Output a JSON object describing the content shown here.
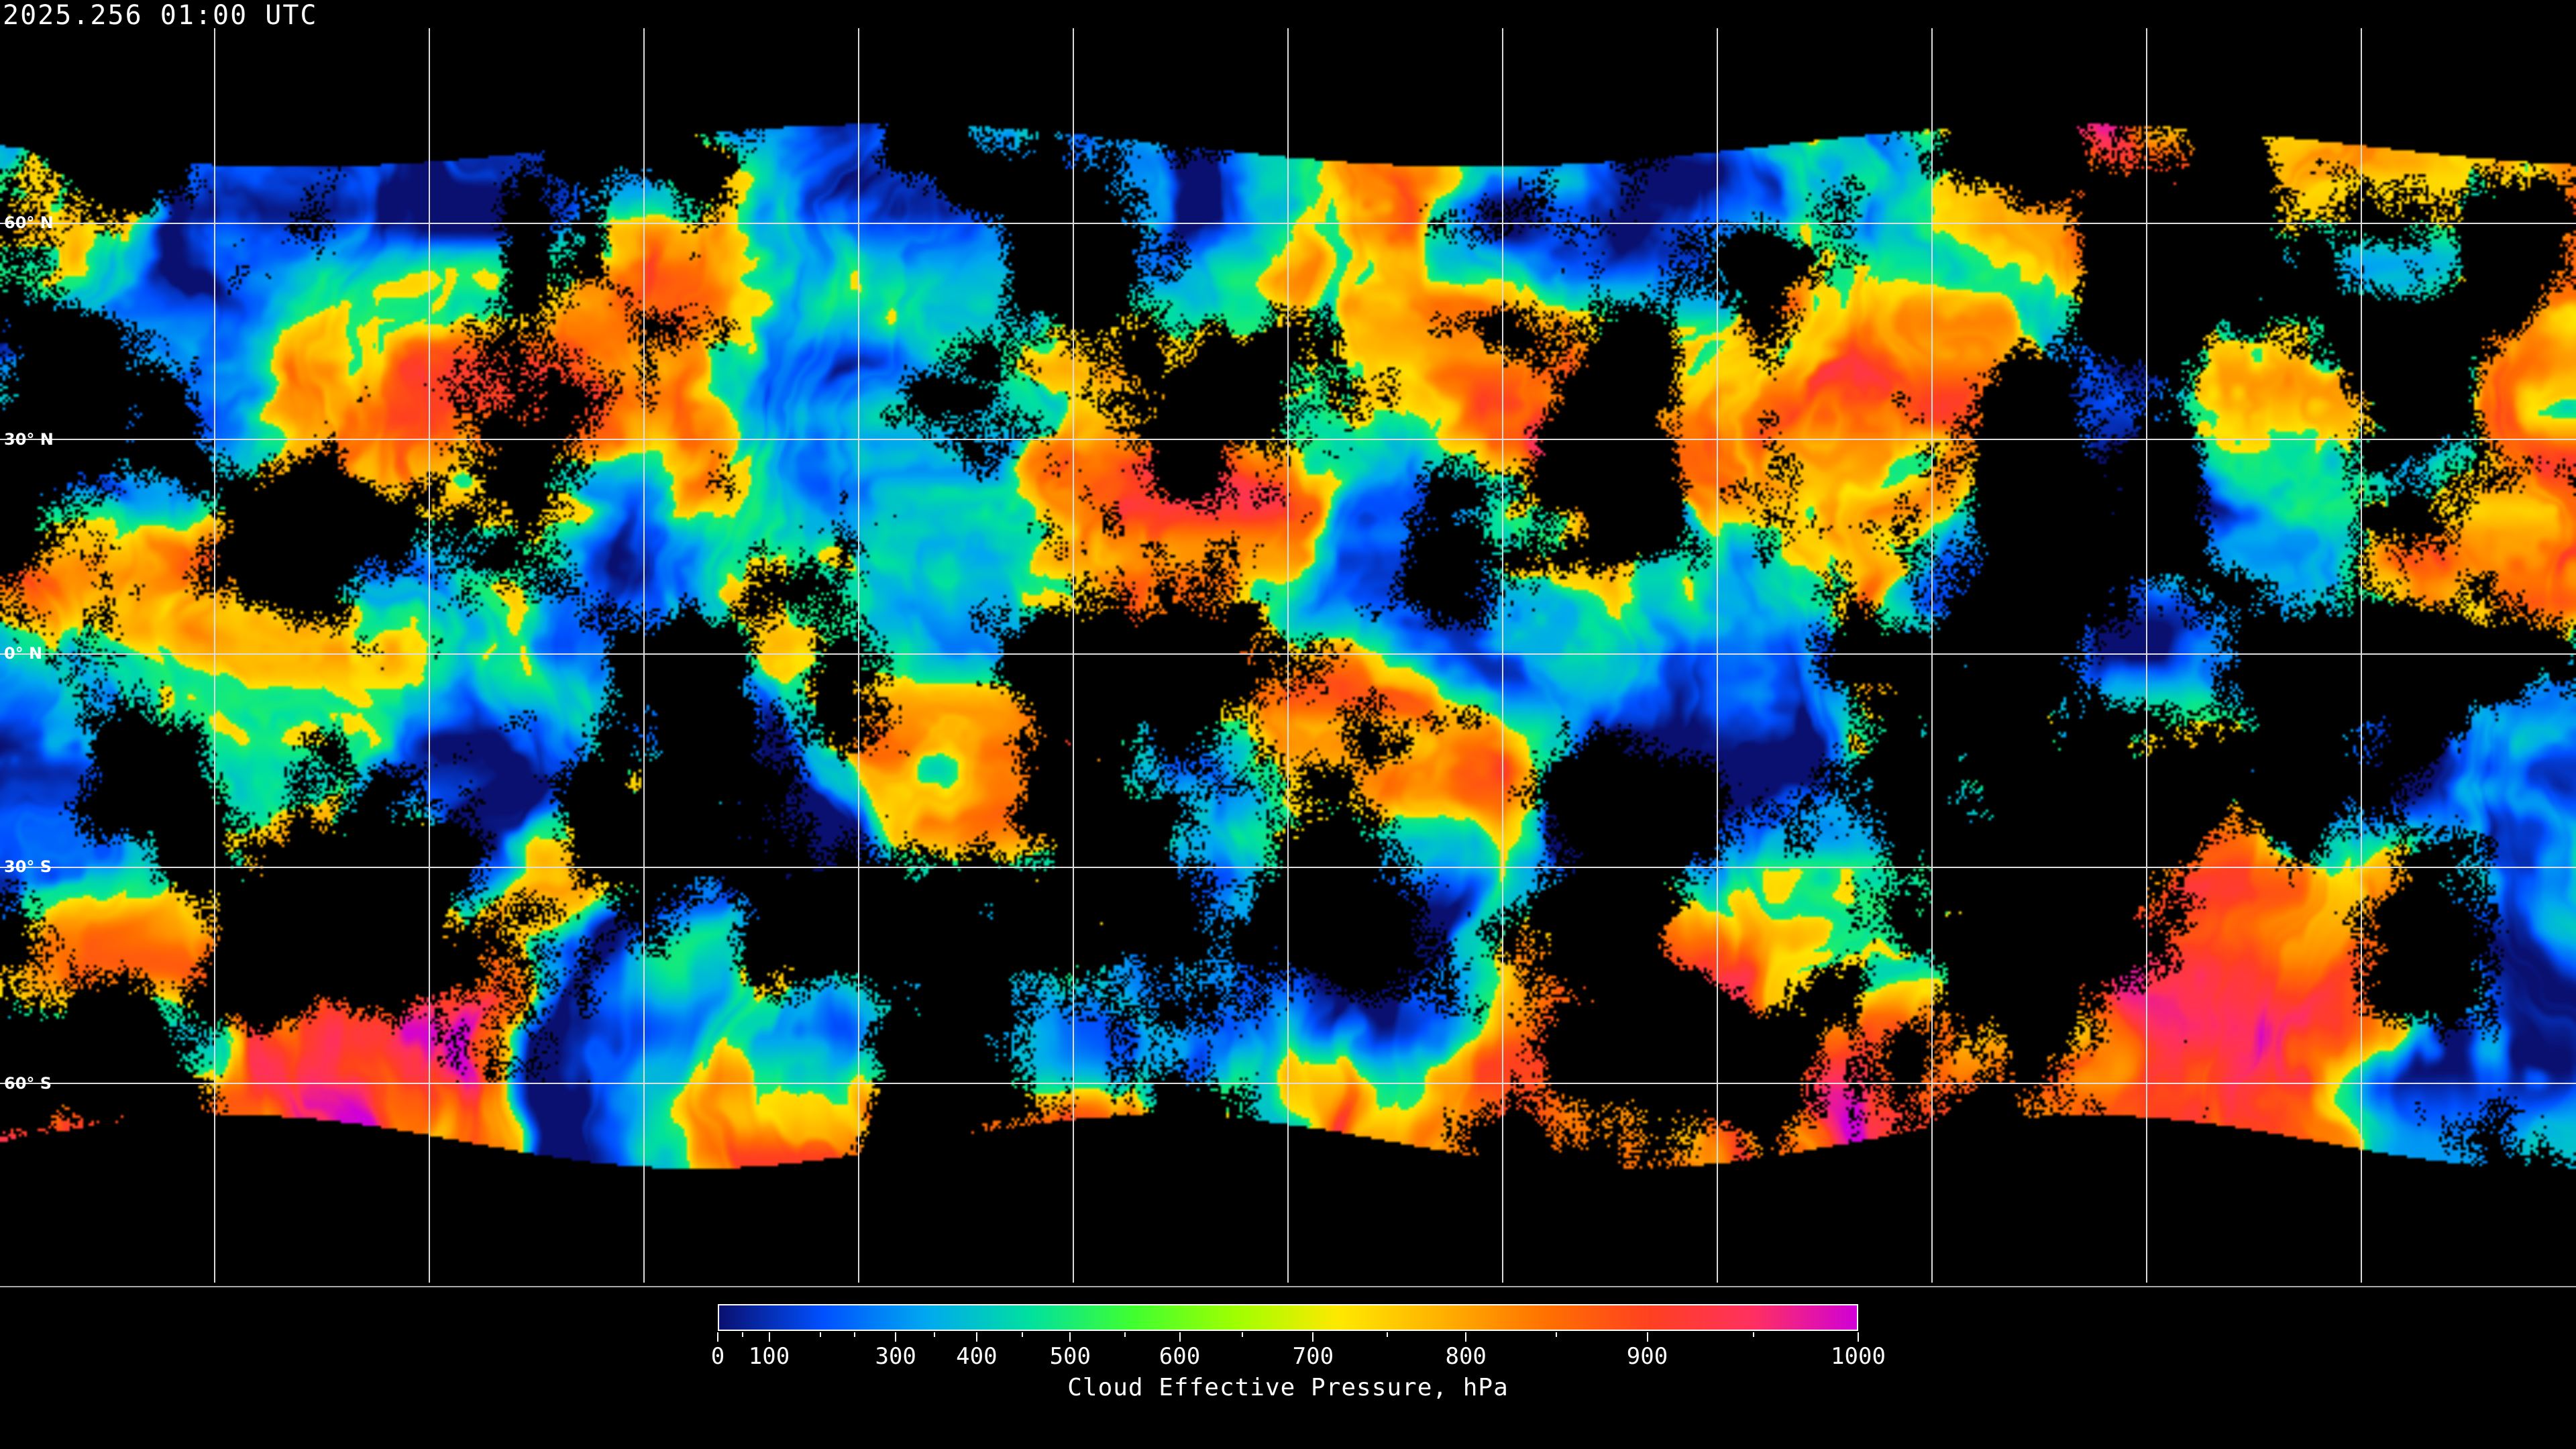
{
  "title": "2025.256 01:00 UTC",
  "latitude_labels": [
    "60° N",
    "30° N",
    "0° N",
    "30° S",
    "60° S"
  ],
  "colorbar": {
    "label": "Cloud Effective Pressure, hPa",
    "ticks": [
      "0",
      "100",
      "300",
      "400",
      "500",
      "600",
      "700",
      "800",
      "900",
      "1000"
    ],
    "range": [
      0,
      1000
    ],
    "colors": [
      "#0a1070",
      "#0050ff",
      "#00a8f0",
      "#00e0a0",
      "#40ff30",
      "#a0ff00",
      "#ffe800",
      "#ffb000",
      "#ff7000",
      "#ff4020",
      "#ff3060",
      "#d000d8"
    ]
  },
  "map": {
    "projection": "equirectangular",
    "gridlines": true,
    "coastlines": true,
    "no_data_color": "#000000"
  }
}
